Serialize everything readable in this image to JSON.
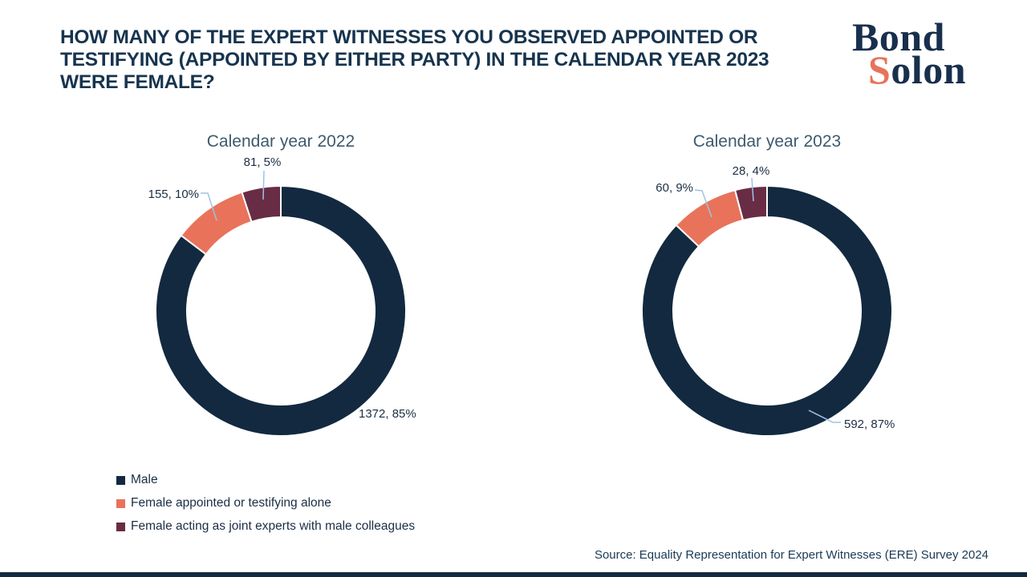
{
  "header": {
    "title": "HOW MANY OF THE EXPERT WITNESSES YOU OBSERVED APPOINTED OR TESTIFYING (APPOINTED BY EITHER PARTY) IN THE CALENDAR YEAR 2023 WERE FEMALE?",
    "title_lines": [
      "HOW MANY OF THE EXPERT WITNESSES YOU OBSERVED APPOINTED OR",
      "TESTIFYING (APPOINTED BY EITHER PARTY) IN THE CALENDAR YEAR 2023",
      "WERE FEMALE?"
    ]
  },
  "logo": {
    "word1": "Bond",
    "word2_initial": "S",
    "word2_rest": "olon"
  },
  "chart_data": [
    {
      "type": "pie",
      "style": "donut",
      "title": "Calendar year 2022",
      "categories": [
        "Male",
        "Female appointed or testifying alone",
        "Female acting as joint experts with male colleagues"
      ],
      "values": [
        1372,
        155,
        81
      ],
      "percentages": [
        85,
        10,
        5
      ],
      "labels": [
        "1372, 85%",
        "155, 10%",
        "81, 5%"
      ],
      "colors": [
        "#122940",
        "#E8735A",
        "#692C45"
      ],
      "start_angle_deg": 0,
      "direction": "clockwise",
      "legend_position": "bottom-left"
    },
    {
      "type": "pie",
      "style": "donut",
      "title": "Calendar year 2023",
      "categories": [
        "Male",
        "Female appointed or testifying alone",
        "Female acting as joint experts with male colleagues"
      ],
      "values": [
        592,
        60,
        28
      ],
      "percentages": [
        87,
        9,
        4
      ],
      "labels": [
        "592, 87%",
        "60, 9%",
        "28, 4%"
      ],
      "colors": [
        "#122940",
        "#E8735A",
        "#692C45"
      ],
      "start_angle_deg": 0,
      "direction": "clockwise",
      "legend_position": "bottom-left"
    }
  ],
  "legend": {
    "items": [
      {
        "label": "Male",
        "color": "#122940"
      },
      {
        "label": "Female appointed or testifying alone",
        "color": "#E8735A"
      },
      {
        "label": "Female acting as joint experts with male colleagues",
        "color": "#692C45"
      }
    ]
  },
  "source": {
    "text": "Source: Equality Representation for Expert Witnesses (ERE) Survey 2024"
  },
  "colors": {
    "navy": "#122940",
    "coral": "#E8735A",
    "maroon": "#692C45",
    "leader_line": "#9DC3E6",
    "chart_title": "#3E5A6D",
    "headline": "#17344E",
    "bottom_bar": "#13293E"
  }
}
